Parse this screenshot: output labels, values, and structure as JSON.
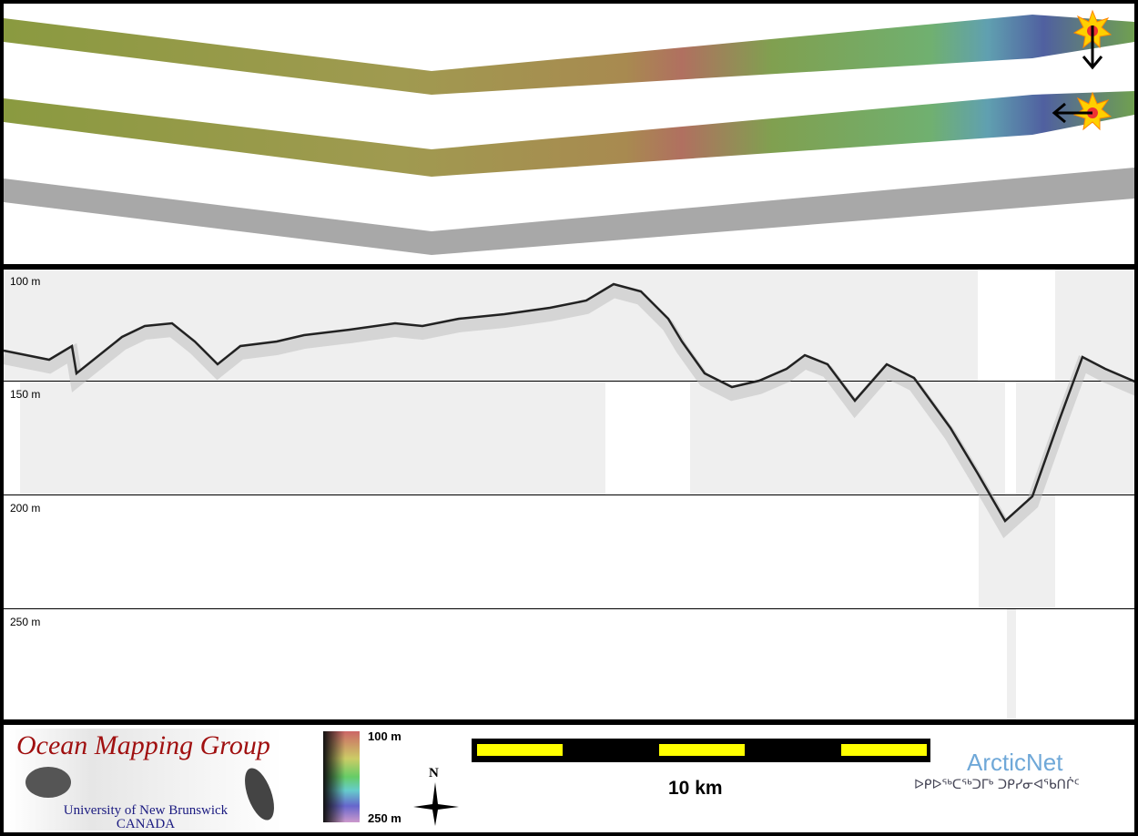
{
  "profile": {
    "depth_labels": [
      "100 m",
      "150 m",
      "200 m",
      "250 m"
    ],
    "depth_range_m": [
      100,
      300
    ],
    "distance_km": [
      0,
      1,
      1.5,
      1.6,
      2.6,
      3.1,
      3.7,
      4.2,
      4.7,
      5.2,
      6,
      6.6,
      7.6,
      8.6,
      9.2,
      10,
      11,
      12,
      12.8,
      13.4,
      14,
      14.6,
      14.9,
      15.4,
      16,
      16.6,
      17.2,
      17.6,
      18.1,
      18.7,
      19.4,
      20,
      20.8,
      21.4,
      22,
      22.6,
      23.2,
      23.7,
      24.2,
      24.9
    ],
    "depth_m": [
      136.8,
      140.8,
      134.8,
      146.8,
      130.8,
      126,
      124.8,
      132.8,
      142.8,
      134.8,
      132.8,
      130,
      127.6,
      124.8,
      126,
      122.8,
      120.8,
      118,
      114.8,
      107.6,
      110.8,
      122.8,
      132.8,
      146.8,
      152.8,
      150,
      144.8,
      138.8,
      142.8,
      158.8,
      142.8,
      148.8,
      170.8,
      190.8,
      211.6,
      200.8,
      166.8,
      139.6,
      144.8,
      150.8
    ]
  },
  "legend": {
    "logo_title": "Ocean Mapping Group",
    "logo_university": "University of New Brunswick",
    "logo_country": "CANADA",
    "colorbar_top": "100 m",
    "colorbar_bottom": "250 m",
    "north_label": "N",
    "scale_label": "10 km",
    "partner_name": "ArcticNet",
    "partner_syllabics": "ᐅᑭᐅᖅᑕᖅᑐᒥᒃ ᑐᑭᓯᓂᐊᖃᑎᒌᑦ"
  },
  "colors": {
    "profile_trace": "#222222",
    "scale_yellow": "#ffff00",
    "logo_red": "#a01010",
    "arcticnet_blue": "#6fa8d8"
  }
}
